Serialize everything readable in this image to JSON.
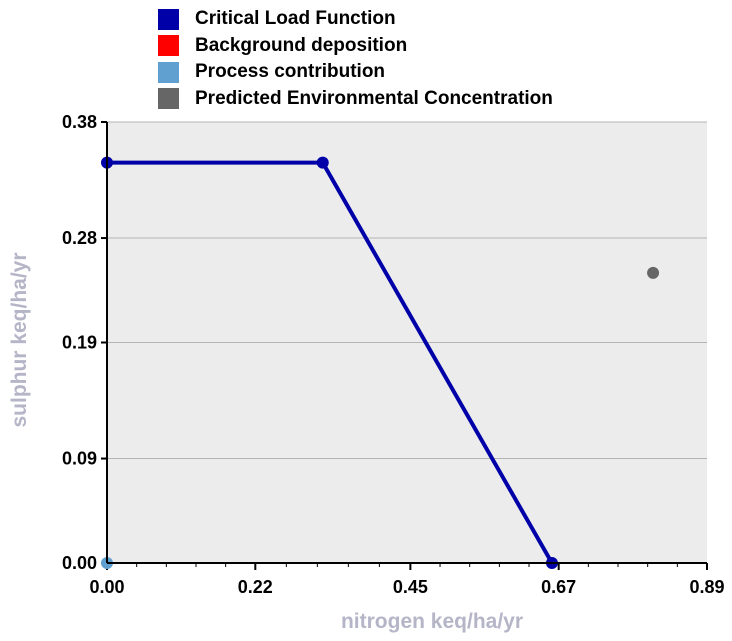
{
  "chart_data": {
    "type": "line",
    "title": "",
    "xlabel": "nitrogen keq/ha/yr",
    "ylabel": "sulphur keq/ha/yr",
    "xlim": [
      0,
      0.89
    ],
    "ylim": [
      0,
      0.38
    ],
    "x_ticks": [
      "0.00",
      "0.22",
      "0.45",
      "0.67",
      "0.89"
    ],
    "y_ticks": [
      "0.00",
      "0.09",
      "0.19",
      "0.28",
      "0.38"
    ],
    "grid": true,
    "legend_position": "top",
    "series": [
      {
        "name": "Critical Load Function",
        "color": "#0000a8",
        "kind": "line",
        "points": [
          [
            0.0,
            0.345
          ],
          [
            0.32,
            0.345
          ],
          [
            0.66,
            0.0
          ]
        ]
      },
      {
        "name": "Background deposition",
        "color": "#ff0000",
        "kind": "point",
        "points": []
      },
      {
        "name": "Process contribution",
        "color": "#5fa0d0",
        "kind": "point",
        "points": [
          [
            0.0,
            0.0
          ]
        ]
      },
      {
        "name": "Predicted Environmental Concentration",
        "color": "#666666",
        "kind": "point",
        "points": [
          [
            0.81,
            0.25
          ]
        ]
      }
    ]
  }
}
